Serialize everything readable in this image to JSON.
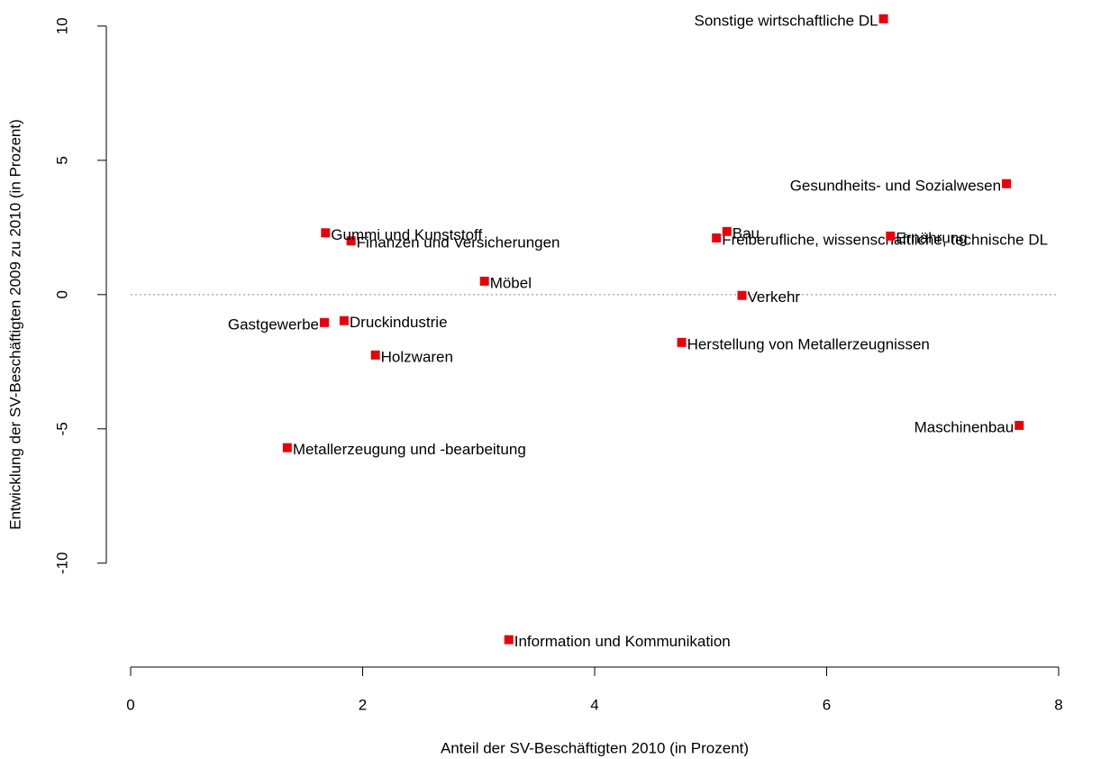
{
  "chart_data": {
    "type": "scatter",
    "x_label": "Anteil der SV-Beschäftigten 2010 (in Prozent)",
    "y_label": "Entwicklung der SV-Beschäftigten 2009 zu 2010 (in Prozent)",
    "color": "#e8000b",
    "reference_line": 0,
    "xlim": [
      0,
      8
    ],
    "xticks": [
      0,
      2,
      4,
      6,
      8
    ],
    "ylim": [
      -13.5,
      10.5
    ],
    "yticks": [
      -10,
      -5,
      0,
      5,
      10
    ],
    "points": [
      {
        "label": "Sonstige wirtschaftliche DL",
        "x": 6.49,
        "y": 10.27
      },
      {
        "label": "Gesundheits- und Sozialwesen",
        "x": 7.55,
        "y": 4.13
      },
      {
        "label": "Freiberufliche, wissenschaftliche, technische DL",
        "x": 5.05,
        "y": 2.11
      },
      {
        "label": "Bau",
        "x": 5.14,
        "y": 2.35
      },
      {
        "label": "Ernährung",
        "x": 6.55,
        "y": 2.18
      },
      {
        "label": "Finanzen und Versicherungen",
        "x": 1.9,
        "y": 2.0
      },
      {
        "label": "Gummi und Kunststoff",
        "x": 1.68,
        "y": 2.3
      },
      {
        "label": "Möbel",
        "x": 3.05,
        "y": 0.5
      },
      {
        "label": "Gastgewerbe",
        "x": 1.67,
        "y": -1.04
      },
      {
        "label": "Druckindustrie",
        "x": 1.84,
        "y": -0.97
      },
      {
        "label": "Verkehr",
        "x": 5.27,
        "y": -0.03
      },
      {
        "label": "Herstellung von Metallerzeugnissen",
        "x": 4.75,
        "y": -1.78
      },
      {
        "label": "Holzwaren",
        "x": 2.11,
        "y": -2.25
      },
      {
        "label": "Maschinenbau",
        "x": 7.66,
        "y": -4.87
      },
      {
        "label": "Metallerzeugung und -bearbeitung",
        "x": 1.35,
        "y": -5.7
      },
      {
        "label": "Information und Kommunikation",
        "x": 3.26,
        "y": -12.85
      }
    ]
  }
}
